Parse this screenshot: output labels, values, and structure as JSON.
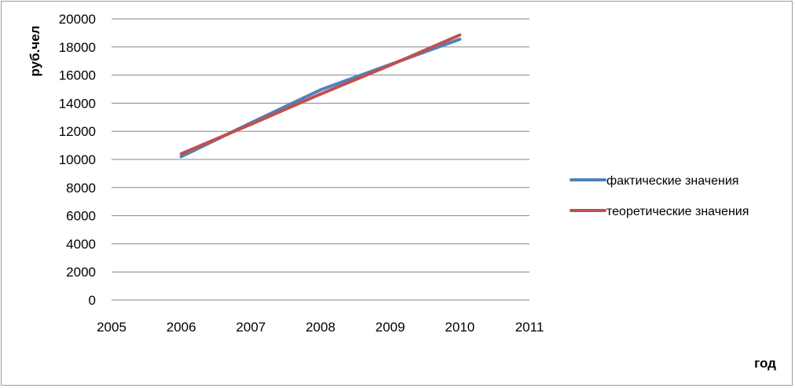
{
  "chart_data": {
    "type": "line",
    "xlabel": "год",
    "ylabel": "руб.чел",
    "xlim": [
      2005,
      2011
    ],
    "ylim": [
      0,
      20000
    ],
    "x_ticks": [
      "2005",
      "2006",
      "2007",
      "2008",
      "2009",
      "2010",
      "2011"
    ],
    "y_ticks": [
      "0",
      "2000",
      "4000",
      "6000",
      "8000",
      "10000",
      "12000",
      "14000",
      "16000",
      "18000",
      "20000"
    ],
    "grid": "horizontal",
    "legend_position": "right",
    "x": [
      2006,
      2007,
      2008,
      2009,
      2010
    ],
    "series": [
      {
        "name": "фактические значения",
        "color": "#4F81BD",
        "values": [
          10200,
          12600,
          14950,
          16750,
          18550
        ]
      },
      {
        "name": "теоретические значения",
        "color": "#C0504D",
        "values": [
          10400,
          12500,
          14650,
          16700,
          18850
        ]
      }
    ]
  }
}
